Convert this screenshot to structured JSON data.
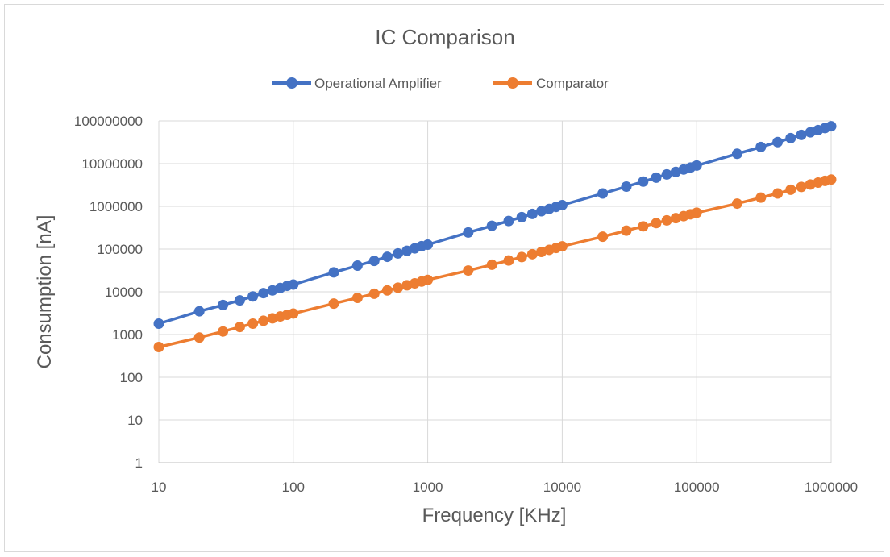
{
  "chart_data": {
    "type": "line",
    "title": "IC Comparison",
    "xlabel": "Frequency [KHz]",
    "ylabel": "Consumption [nA]",
    "x_scale": "log",
    "y_scale": "log",
    "xlim": [
      10,
      1000000
    ],
    "ylim": [
      1,
      100000000
    ],
    "x_ticks": [
      "10",
      "100",
      "1000",
      "10000",
      "100000",
      "1000000"
    ],
    "y_ticks": [
      "1",
      "10",
      "100",
      "1000",
      "10000",
      "100000",
      "1000000",
      "10000000",
      "100000000"
    ],
    "grid": "horizontal and vertical major",
    "legend_position": "top",
    "x": [
      10,
      20,
      30,
      40,
      50,
      60,
      70,
      80,
      90,
      100,
      200,
      300,
      400,
      500,
      600,
      700,
      800,
      900,
      1000,
      2000,
      3000,
      4000,
      5000,
      6000,
      7000,
      8000,
      9000,
      10000,
      20000,
      30000,
      40000,
      50000,
      60000,
      70000,
      80000,
      90000,
      100000,
      200000,
      300000,
      400000,
      500000,
      600000,
      700000,
      800000,
      900000,
      1000000
    ],
    "series": [
      {
        "name": "Operational Amplifier",
        "color": "#4472c4",
        "values": [
          1800,
          3500,
          4900,
          6300,
          7800,
          9300,
          10800,
          12300,
          13800,
          14800,
          28500,
          41000,
          53000,
          66000,
          79000,
          91000,
          104000,
          117000,
          127000,
          245000,
          350000,
          455000,
          560000,
          665000,
          770000,
          870000,
          970000,
          1070000,
          2000000,
          2900000,
          3800000,
          4700000,
          5600000,
          6400000,
          7300000,
          8100000,
          9000000,
          17000000,
          24500000,
          32000000,
          39500000,
          47000000,
          54000000,
          61000000,
          68000000,
          75000000
        ]
      },
      {
        "name": "Comparator",
        "color": "#ed7d31",
        "values": [
          510,
          850,
          1180,
          1500,
          1800,
          2100,
          2400,
          2650,
          2900,
          3100,
          5300,
          7200,
          9000,
          10800,
          12500,
          14200,
          15800,
          17400,
          19000,
          31500,
          43000,
          54000,
          65000,
          76000,
          86000,
          96000,
          106000,
          116000,
          195000,
          270000,
          340000,
          405000,
          470000,
          530000,
          590000,
          650000,
          710000,
          1160000,
          1600000,
          2000000,
          2450000,
          2850000,
          3250000,
          3600000,
          3950000,
          4250000
        ]
      }
    ]
  }
}
